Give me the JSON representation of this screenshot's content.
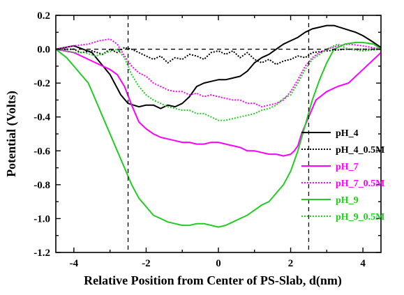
{
  "chart_data": {
    "type": "line",
    "xlabel": "Relative Position from Center of PS-Slab, d(nm)",
    "ylabel": "Potential (Volts)",
    "xlim": [
      -4.5,
      4.5
    ],
    "ylim": [
      -1.2,
      0.2
    ],
    "x_ticks": [
      -4,
      -2,
      0,
      2,
      4
    ],
    "x_tick_labels": [
      "-4",
      "-2",
      "0",
      "2",
      "4"
    ],
    "y_ticks": [
      0.2,
      0.0,
      -0.2,
      -0.4,
      -0.6,
      -0.8,
      -1.0,
      -1.2
    ],
    "y_tick_labels": [
      "0.2",
      "0.0",
      "-0.2",
      "-0.4",
      "-0.6",
      "-0.8",
      "-1.0",
      "-1.2"
    ],
    "reference_lines": {
      "vertical_x": [
        -2.5,
        2.5
      ],
      "horizontal_y": 0.0,
      "style": "dashed"
    },
    "legend_position": "right",
    "grid": false,
    "series": [
      {
        "name": "pH_4",
        "color": "#000000",
        "style": "solid",
        "x": [
          -4.5,
          -4,
          -3.5,
          -3,
          -2.7,
          -2.5,
          -2.2,
          -2,
          -1.8,
          -1.6,
          -1.4,
          -1.2,
          -1,
          -0.8,
          -0.6,
          -0.4,
          -0.2,
          0,
          0.2,
          0.4,
          0.6,
          0.8,
          1,
          1.2,
          1.4,
          1.6,
          1.8,
          2,
          2.2,
          2.4,
          2.6,
          2.8,
          3,
          3.2,
          3.5,
          3.8,
          4,
          4.3,
          4.5
        ],
        "y": [
          0.0,
          0.02,
          -0.02,
          -0.15,
          -0.27,
          -0.32,
          -0.34,
          -0.33,
          -0.33,
          -0.35,
          -0.33,
          -0.34,
          -0.32,
          -0.28,
          -0.22,
          -0.2,
          -0.19,
          -0.18,
          -0.18,
          -0.17,
          -0.16,
          -0.13,
          -0.08,
          -0.05,
          -0.03,
          0.0,
          0.03,
          0.05,
          0.07,
          0.1,
          0.12,
          0.13,
          0.14,
          0.14,
          0.12,
          0.1,
          0.08,
          0.04,
          0.01
        ]
      },
      {
        "name": "pH_4_0.5M",
        "color": "#000000",
        "style": "dotted",
        "x": [
          -4.5,
          -4,
          -3.8,
          -3.5,
          -3.2,
          -3,
          -2.8,
          -2.6,
          -2.4,
          -2.2,
          -2,
          -1.8,
          -1.6,
          -1.4,
          -1.2,
          -1,
          -0.8,
          -0.6,
          -0.4,
          -0.2,
          0,
          0.2,
          0.4,
          0.6,
          0.8,
          1,
          1.2,
          1.4,
          1.6,
          1.8,
          2,
          2.2,
          2.4,
          2.6,
          3,
          3.5,
          4,
          4.5
        ],
        "y": [
          0.0,
          0.0,
          -0.02,
          -0.01,
          -0.03,
          0.0,
          -0.02,
          0.01,
          0.0,
          -0.02,
          -0.04,
          -0.06,
          -0.04,
          -0.08,
          -0.05,
          -0.06,
          -0.03,
          -0.04,
          -0.06,
          -0.02,
          -0.01,
          -0.03,
          -0.01,
          -0.05,
          -0.02,
          -0.06,
          -0.08,
          -0.06,
          -0.09,
          -0.07,
          -0.06,
          -0.04,
          -0.05,
          -0.02,
          -0.01,
          0.0,
          0.0,
          0.0
        ]
      },
      {
        "name": "pH_7",
        "color": "#ff00ff",
        "style": "solid",
        "x": [
          -4.5,
          -4,
          -3.6,
          -3.2,
          -3,
          -2.8,
          -2.6,
          -2.4,
          -2.2,
          -2,
          -1.8,
          -1.6,
          -1.4,
          -1.2,
          -1,
          -0.8,
          -0.6,
          -0.4,
          -0.2,
          0,
          0.2,
          0.4,
          0.6,
          0.8,
          1,
          1.2,
          1.4,
          1.6,
          1.8,
          2,
          2.1,
          2.2,
          2.3,
          2.5,
          2.7,
          3,
          3.3,
          3.6,
          4,
          4.3,
          4.5
        ],
        "y": [
          0.0,
          -0.02,
          -0.06,
          -0.1,
          -0.12,
          -0.15,
          -0.22,
          -0.33,
          -0.43,
          -0.47,
          -0.5,
          -0.52,
          -0.53,
          -0.54,
          -0.55,
          -0.55,
          -0.56,
          -0.56,
          -0.55,
          -0.55,
          -0.56,
          -0.57,
          -0.58,
          -0.6,
          -0.6,
          -0.61,
          -0.62,
          -0.62,
          -0.63,
          -0.62,
          -0.6,
          -0.57,
          -0.5,
          -0.4,
          -0.3,
          -0.25,
          -0.22,
          -0.2,
          -0.12,
          -0.06,
          -0.02
        ]
      },
      {
        "name": "pH_7_0.5M",
        "color": "#ff00ff",
        "style": "dotted",
        "x": [
          -4.5,
          -4,
          -3.6,
          -3.3,
          -3,
          -2.8,
          -2.6,
          -2.4,
          -2.2,
          -2,
          -1.8,
          -1.6,
          -1.4,
          -1.2,
          -1,
          -0.8,
          -0.6,
          -0.4,
          -0.2,
          0,
          0.2,
          0.4,
          0.6,
          0.8,
          1,
          1.2,
          1.4,
          1.6,
          1.8,
          2,
          2.2,
          2.4,
          2.6,
          2.8,
          3,
          3.3,
          3.6,
          4,
          4.5
        ],
        "y": [
          0.0,
          0.02,
          0.03,
          0.05,
          0.06,
          0.03,
          -0.04,
          -0.1,
          -0.14,
          -0.16,
          -0.2,
          -0.22,
          -0.24,
          -0.25,
          -0.25,
          -0.27,
          -0.26,
          -0.28,
          -0.27,
          -0.28,
          -0.29,
          -0.3,
          -0.3,
          -0.32,
          -0.32,
          -0.34,
          -0.33,
          -0.32,
          -0.3,
          -0.25,
          -0.18,
          -0.1,
          -0.05,
          -0.02,
          0.0,
          0.02,
          0.03,
          0.02,
          0.0
        ]
      },
      {
        "name": "pH_9",
        "color": "#22cc22",
        "style": "solid",
        "x": [
          -4.5,
          -4.2,
          -4,
          -3.8,
          -3.6,
          -3.4,
          -3.2,
          -3,
          -2.8,
          -2.6,
          -2.4,
          -2.2,
          -2,
          -1.8,
          -1.6,
          -1.4,
          -1.2,
          -1,
          -0.8,
          -0.6,
          -0.4,
          -0.2,
          0,
          0.2,
          0.4,
          0.6,
          0.8,
          1,
          1.2,
          1.4,
          1.6,
          1.8,
          2,
          2.2,
          2.4,
          2.6,
          2.8,
          3,
          3.2,
          3.5,
          3.8,
          4,
          4.3,
          4.5
        ],
        "y": [
          0.0,
          -0.05,
          -0.1,
          -0.15,
          -0.2,
          -0.3,
          -0.4,
          -0.5,
          -0.6,
          -0.7,
          -0.8,
          -0.88,
          -0.93,
          -0.98,
          -1.0,
          -1.02,
          -1.03,
          -1.04,
          -1.04,
          -1.03,
          -1.03,
          -1.04,
          -1.05,
          -1.04,
          -1.02,
          -1.0,
          -0.98,
          -0.95,
          -0.92,
          -0.9,
          -0.85,
          -0.8,
          -0.72,
          -0.6,
          -0.45,
          -0.3,
          -0.18,
          -0.08,
          0.0,
          0.03,
          0.04,
          0.04,
          0.03,
          0.0
        ]
      },
      {
        "name": "pH_9_0.5M",
        "color": "#22cc22",
        "style": "dotted",
        "x": [
          -4.5,
          -4.2,
          -4,
          -3.7,
          -3.4,
          -3.1,
          -2.8,
          -2.6,
          -2.4,
          -2.2,
          -2,
          -1.8,
          -1.6,
          -1.4,
          -1.2,
          -1,
          -0.8,
          -0.6,
          -0.4,
          -0.2,
          0,
          0.2,
          0.4,
          0.6,
          0.8,
          1,
          1.2,
          1.4,
          1.6,
          1.8,
          2,
          2.2,
          2.4,
          2.6,
          2.8,
          3,
          3.3,
          3.6,
          4,
          4.5
        ],
        "y": [
          0.0,
          -0.01,
          -0.02,
          -0.02,
          -0.04,
          -0.02,
          0.0,
          -0.05,
          -0.15,
          -0.22,
          -0.27,
          -0.3,
          -0.32,
          -0.34,
          -0.35,
          -0.36,
          -0.36,
          -0.38,
          -0.38,
          -0.4,
          -0.42,
          -0.42,
          -0.41,
          -0.4,
          -0.39,
          -0.38,
          -0.36,
          -0.35,
          -0.33,
          -0.29,
          -0.27,
          -0.2,
          -0.12,
          -0.06,
          -0.03,
          0.0,
          0.03,
          0.0,
          -0.01,
          0.0
        ]
      }
    ]
  }
}
